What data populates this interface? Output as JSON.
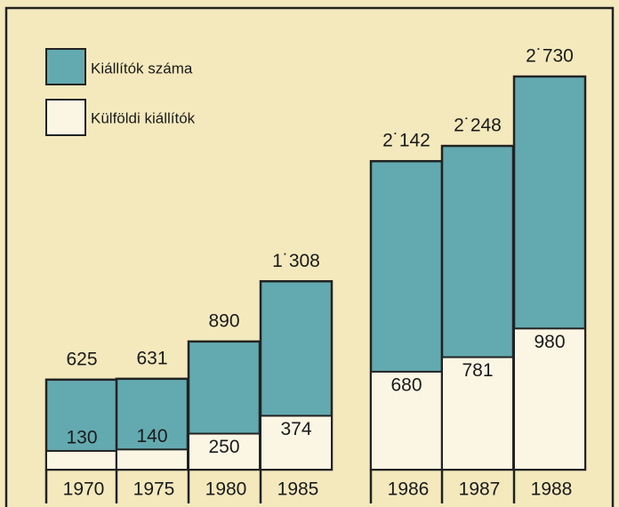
{
  "chart_data": {
    "type": "bar",
    "categories": [
      "1970",
      "1975",
      "1980",
      "1985",
      "1986",
      "1987",
      "1988"
    ],
    "series": [
      {
        "name": "Kiállítók száma",
        "color": "#63aab0",
        "values": [
          625,
          631,
          890,
          1308,
          2142,
          2248,
          2730
        ],
        "value_labels": [
          "625",
          "631",
          "890",
          "1˙308",
          "2˙142",
          "2˙248",
          "2˙730"
        ]
      },
      {
        "name": "Külföldi kiállítók",
        "color": "#fbf6e4",
        "values": [
          130,
          140,
          250,
          374,
          680,
          781,
          980
        ]
      }
    ]
  }
}
